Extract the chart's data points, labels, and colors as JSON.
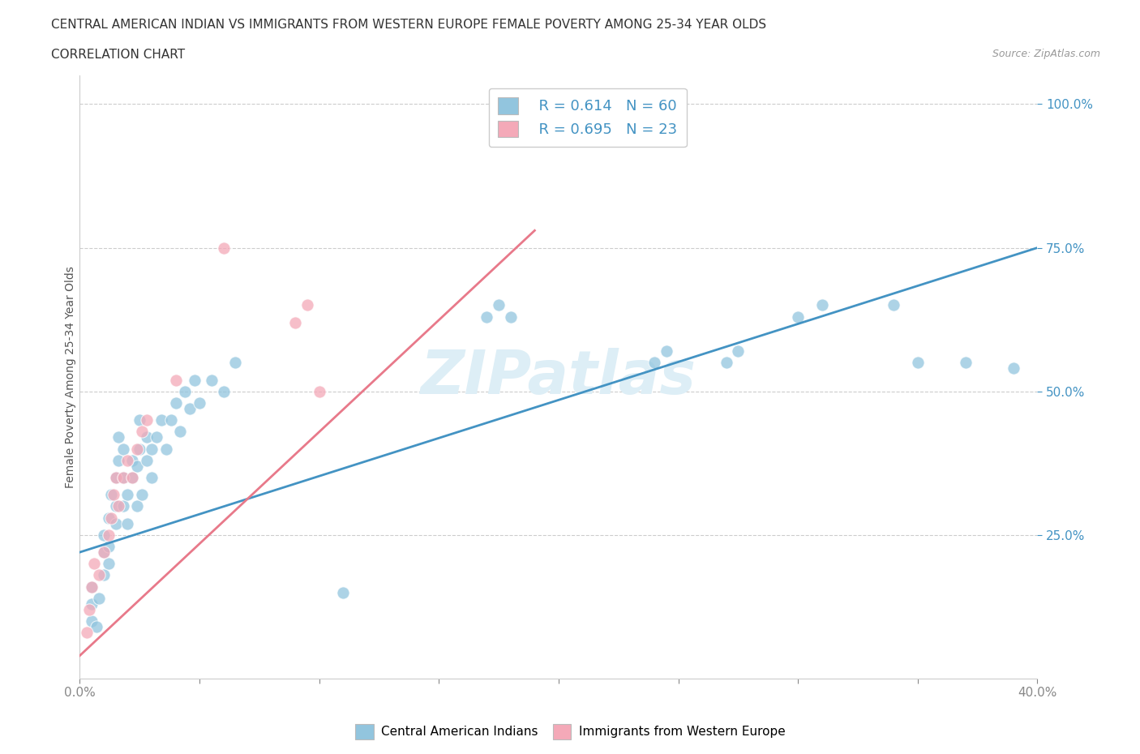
{
  "title_line1": "CENTRAL AMERICAN INDIAN VS IMMIGRANTS FROM WESTERN EUROPE FEMALE POVERTY AMONG 25-34 YEAR OLDS",
  "title_line2": "CORRELATION CHART",
  "source_text": "Source: ZipAtlas.com",
  "ylabel": "Female Poverty Among 25-34 Year Olds",
  "xlim": [
    0.0,
    0.4
  ],
  "ylim": [
    0.0,
    1.05
  ],
  "xticks": [
    0.0,
    0.05,
    0.1,
    0.15,
    0.2,
    0.25,
    0.3,
    0.35,
    0.4
  ],
  "xticklabels": [
    "0.0%",
    "",
    "",
    "",
    "",
    "",
    "",
    "",
    "40.0%"
  ],
  "ytick_positions": [
    0.25,
    0.5,
    0.75,
    1.0
  ],
  "yticklabels": [
    "25.0%",
    "50.0%",
    "75.0%",
    "100.0%"
  ],
  "watermark": "ZIPatlas",
  "legend_R1": "R = 0.614",
  "legend_N1": "N = 60",
  "legend_R2": "R = 0.695",
  "legend_N2": "N = 23",
  "legend_label1": "Central American Indians",
  "legend_label2": "Immigrants from Western Europe",
  "blue_color": "#92C5DE",
  "pink_color": "#F4A9B8",
  "blue_line_color": "#4393C3",
  "pink_line_color": "#E8798A",
  "blue_scatter": [
    [
      0.005,
      0.1
    ],
    [
      0.005,
      0.13
    ],
    [
      0.005,
      0.16
    ],
    [
      0.007,
      0.09
    ],
    [
      0.008,
      0.14
    ],
    [
      0.01,
      0.18
    ],
    [
      0.01,
      0.22
    ],
    [
      0.01,
      0.25
    ],
    [
      0.012,
      0.2
    ],
    [
      0.012,
      0.23
    ],
    [
      0.012,
      0.28
    ],
    [
      0.013,
      0.32
    ],
    [
      0.015,
      0.27
    ],
    [
      0.015,
      0.3
    ],
    [
      0.015,
      0.35
    ],
    [
      0.016,
      0.38
    ],
    [
      0.016,
      0.42
    ],
    [
      0.018,
      0.3
    ],
    [
      0.018,
      0.35
    ],
    [
      0.018,
      0.4
    ],
    [
      0.02,
      0.27
    ],
    [
      0.02,
      0.32
    ],
    [
      0.022,
      0.35
    ],
    [
      0.022,
      0.38
    ],
    [
      0.024,
      0.3
    ],
    [
      0.024,
      0.37
    ],
    [
      0.025,
      0.4
    ],
    [
      0.025,
      0.45
    ],
    [
      0.026,
      0.32
    ],
    [
      0.028,
      0.38
    ],
    [
      0.028,
      0.42
    ],
    [
      0.03,
      0.35
    ],
    [
      0.03,
      0.4
    ],
    [
      0.032,
      0.42
    ],
    [
      0.034,
      0.45
    ],
    [
      0.036,
      0.4
    ],
    [
      0.038,
      0.45
    ],
    [
      0.04,
      0.48
    ],
    [
      0.042,
      0.43
    ],
    [
      0.044,
      0.5
    ],
    [
      0.046,
      0.47
    ],
    [
      0.048,
      0.52
    ],
    [
      0.05,
      0.48
    ],
    [
      0.055,
      0.52
    ],
    [
      0.06,
      0.5
    ],
    [
      0.065,
      0.55
    ],
    [
      0.11,
      0.15
    ],
    [
      0.17,
      0.63
    ],
    [
      0.175,
      0.65
    ],
    [
      0.18,
      0.63
    ],
    [
      0.24,
      0.55
    ],
    [
      0.245,
      0.57
    ],
    [
      0.27,
      0.55
    ],
    [
      0.275,
      0.57
    ],
    [
      0.3,
      0.63
    ],
    [
      0.31,
      0.65
    ],
    [
      0.34,
      0.65
    ],
    [
      0.35,
      0.55
    ],
    [
      0.37,
      0.55
    ],
    [
      0.39,
      0.54
    ]
  ],
  "pink_scatter": [
    [
      0.003,
      0.08
    ],
    [
      0.004,
      0.12
    ],
    [
      0.005,
      0.16
    ],
    [
      0.006,
      0.2
    ],
    [
      0.008,
      0.18
    ],
    [
      0.01,
      0.22
    ],
    [
      0.012,
      0.25
    ],
    [
      0.013,
      0.28
    ],
    [
      0.014,
      0.32
    ],
    [
      0.015,
      0.35
    ],
    [
      0.016,
      0.3
    ],
    [
      0.018,
      0.35
    ],
    [
      0.02,
      0.38
    ],
    [
      0.022,
      0.35
    ],
    [
      0.024,
      0.4
    ],
    [
      0.026,
      0.43
    ],
    [
      0.028,
      0.45
    ],
    [
      0.04,
      0.52
    ],
    [
      0.09,
      0.62
    ],
    [
      0.095,
      0.65
    ],
    [
      0.1,
      0.5
    ],
    [
      0.06,
      0.75
    ],
    [
      0.18,
      0.95
    ]
  ],
  "blue_line_x": [
    0.0,
    0.4
  ],
  "blue_line_y": [
    0.22,
    0.75
  ],
  "pink_line_x": [
    0.0,
    0.19
  ],
  "pink_line_y": [
    0.04,
    0.78
  ]
}
